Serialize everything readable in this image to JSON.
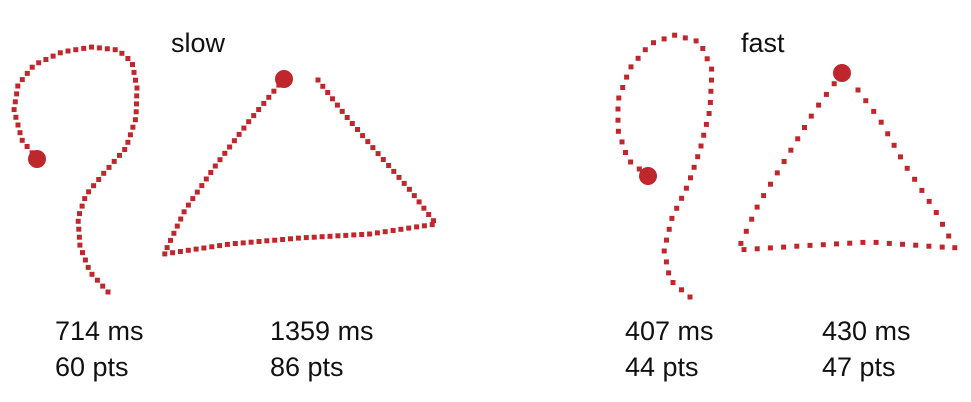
{
  "colors": {
    "ink": "#c0272d",
    "text": "#111111"
  },
  "groups": [
    {
      "id": "slow",
      "title": "slow",
      "strokes": [
        {
          "name": "question-mark-stroke",
          "duration": "714 ms",
          "points": "60 pts"
        },
        {
          "name": "triangle-stroke",
          "duration": "1359 ms",
          "points": "86 pts"
        }
      ]
    },
    {
      "id": "fast",
      "title": "fast",
      "strokes": [
        {
          "name": "question-mark-stroke",
          "duration": "407 ms",
          "points": "44 pts"
        },
        {
          "name": "triangle-stroke",
          "duration": "430 ms",
          "points": "47 pts"
        }
      ]
    }
  ]
}
